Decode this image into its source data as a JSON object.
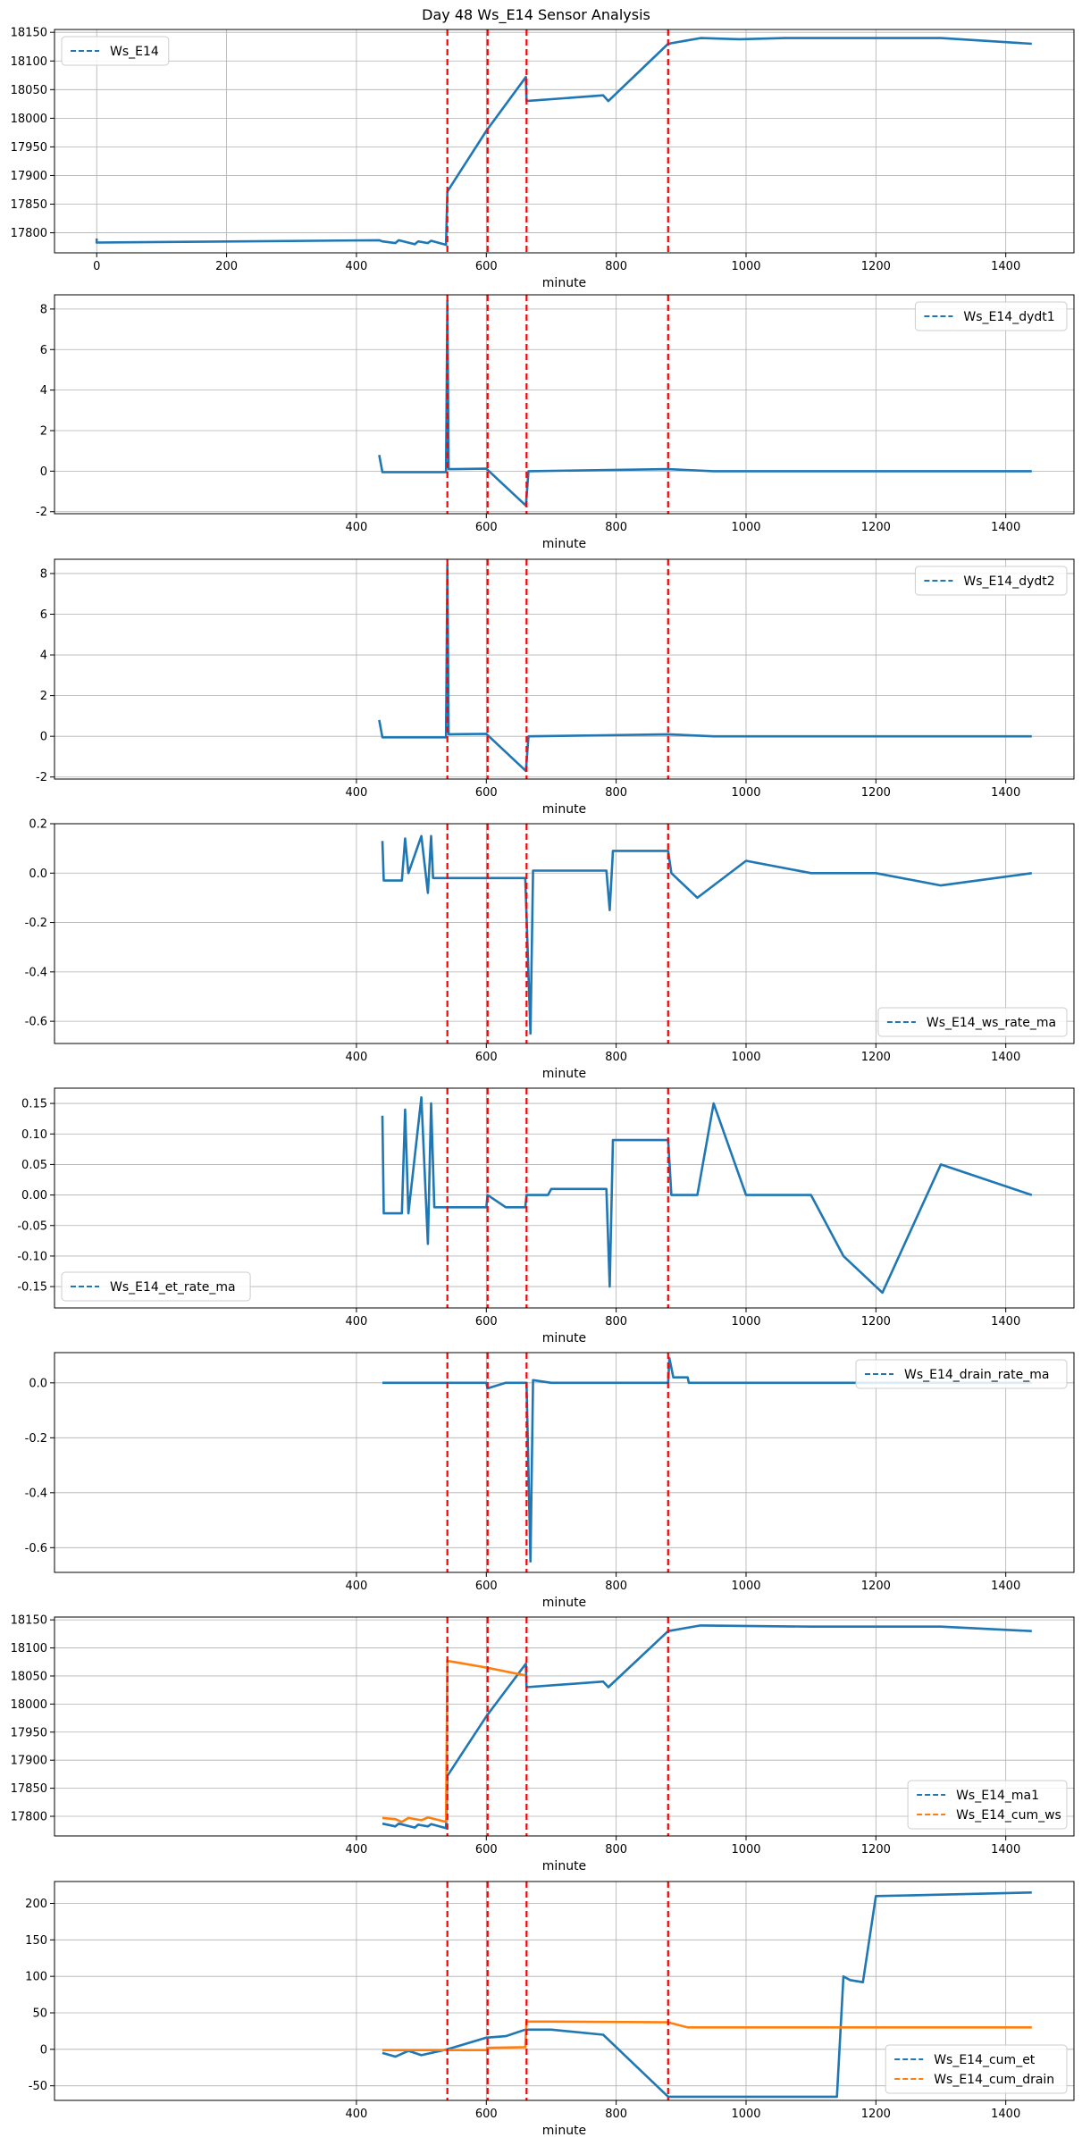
{
  "title": "Day 48 Ws_E14 Sensor Analysis",
  "colors": {
    "blue": "#1f77b4",
    "orange": "#ff7f0e",
    "vline": "#ff0000",
    "grid": "#b0b0b0"
  },
  "chart_data": [
    {
      "type": "line",
      "xlabel": "minute",
      "xlim": [
        -65,
        1505
      ],
      "ylim": [
        17765,
        18155
      ],
      "xticks": [
        0,
        200,
        400,
        600,
        800,
        1000,
        1200,
        1400
      ],
      "yticks": [
        17800,
        17850,
        17900,
        17950,
        18000,
        18050,
        18100,
        18150
      ],
      "legend": "top-left",
      "vlines": [
        540,
        602,
        662,
        880
      ],
      "series": [
        {
          "name": "Ws_E14",
          "color": "blue",
          "points": [
            [
              0,
              17790
            ],
            [
              0,
              17783
            ],
            [
              435,
              17787
            ],
            [
              440,
              17785
            ],
            [
              460,
              17782
            ],
            [
              465,
              17787
            ],
            [
              490,
              17780
            ],
            [
              495,
              17785
            ],
            [
              510,
              17782
            ],
            [
              515,
              17786
            ],
            [
              538,
              17779
            ],
            [
              540,
              17872
            ],
            [
              600,
              17978
            ],
            [
              661,
              18072
            ],
            [
              662,
              18030
            ],
            [
              780,
              18040
            ],
            [
              788,
              18030
            ],
            [
              880,
              18130
            ],
            [
              930,
              18140
            ],
            [
              990,
              18138
            ],
            [
              1060,
              18140
            ],
            [
              1140,
              18140
            ],
            [
              1200,
              18140
            ],
            [
              1300,
              18140
            ],
            [
              1440,
              18130
            ]
          ]
        }
      ]
    },
    {
      "type": "line",
      "xlabel": "minute",
      "xlim": [
        -65,
        1505
      ],
      "ylim": [
        -2.1,
        8.7
      ],
      "xticks": [
        400,
        600,
        800,
        1000,
        1200,
        1400
      ],
      "yticks": [
        -2,
        0,
        2,
        4,
        6,
        8
      ],
      "legend": "top-right",
      "vlines": [
        540,
        602,
        662,
        880
      ],
      "series": [
        {
          "name": "Ws_E14_dydt1",
          "color": "blue",
          "points": [
            [
              435,
              0.8
            ],
            [
              440,
              -0.05
            ],
            [
              500,
              -0.05
            ],
            [
              538,
              -0.05
            ],
            [
              540,
              8.4
            ],
            [
              542,
              0.1
            ],
            [
              600,
              0.12
            ],
            [
              661,
              -1.7
            ],
            [
              665,
              0
            ],
            [
              780,
              0.05
            ],
            [
              880,
              0.1
            ],
            [
              950,
              0
            ],
            [
              1050,
              0
            ],
            [
              1150,
              0
            ],
            [
              1250,
              0
            ],
            [
              1350,
              0
            ],
            [
              1440,
              0
            ]
          ]
        }
      ]
    },
    {
      "type": "line",
      "xlabel": "minute",
      "xlim": [
        -65,
        1505
      ],
      "ylim": [
        -2.1,
        8.7
      ],
      "xticks": [
        400,
        600,
        800,
        1000,
        1200,
        1400
      ],
      "yticks": [
        -2,
        0,
        2,
        4,
        6,
        8
      ],
      "legend": "top-right",
      "vlines": [
        540,
        602,
        662,
        880
      ],
      "series": [
        {
          "name": "Ws_E14_dydt2",
          "color": "blue",
          "points": [
            [
              435,
              0.8
            ],
            [
              440,
              -0.05
            ],
            [
              500,
              -0.05
            ],
            [
              538,
              -0.05
            ],
            [
              540,
              8.4
            ],
            [
              542,
              0.1
            ],
            [
              600,
              0.12
            ],
            [
              661,
              -1.7
            ],
            [
              665,
              0
            ],
            [
              780,
              0.05
            ],
            [
              880,
              0.1
            ],
            [
              950,
              0
            ],
            [
              1050,
              0
            ],
            [
              1150,
              0
            ],
            [
              1250,
              0
            ],
            [
              1350,
              0
            ],
            [
              1440,
              0
            ]
          ]
        }
      ]
    },
    {
      "type": "line",
      "xlabel": "minute",
      "xlim": [
        -65,
        1505
      ],
      "ylim": [
        -0.69,
        0.2
      ],
      "xticks": [
        400,
        600,
        800,
        1000,
        1200,
        1400
      ],
      "yticks": [
        -0.6,
        -0.4,
        -0.2,
        0.0,
        0.2
      ],
      "legend": "bottom-right",
      "vlines": [
        540,
        602,
        662,
        880
      ],
      "series": [
        {
          "name": "Ws_E14_ws_rate_ma",
          "color": "blue",
          "points": [
            [
              440,
              0.13
            ],
            [
              442,
              -0.03
            ],
            [
              470,
              -0.03
            ],
            [
              475,
              0.14
            ],
            [
              480,
              0.0
            ],
            [
              500,
              0.15
            ],
            [
              510,
              -0.08
            ],
            [
              515,
              0.15
            ],
            [
              518,
              -0.02
            ],
            [
              600,
              -0.02
            ],
            [
              602,
              -0.02
            ],
            [
              660,
              -0.02
            ],
            [
              668,
              -0.65
            ],
            [
              672,
              0.01
            ],
            [
              785,
              0.01
            ],
            [
              790,
              -0.15
            ],
            [
              795,
              0.09
            ],
            [
              880,
              0.09
            ],
            [
              885,
              0.0
            ],
            [
              925,
              -0.1
            ],
            [
              1000,
              0.05
            ],
            [
              1100,
              0.0
            ],
            [
              1200,
              0.0
            ],
            [
              1300,
              -0.05
            ],
            [
              1440,
              0.0
            ]
          ]
        }
      ]
    },
    {
      "type": "line",
      "xlabel": "minute",
      "xlim": [
        -65,
        1505
      ],
      "ylim": [
        -0.185,
        0.175
      ],
      "xticks": [
        400,
        600,
        800,
        1000,
        1200,
        1400
      ],
      "yticks": [
        -0.15,
        -0.1,
        -0.05,
        0.0,
        0.05,
        0.1,
        0.15
      ],
      "legend": "bottom-left",
      "vlines": [
        540,
        602,
        662,
        880
      ],
      "series": [
        {
          "name": "Ws_E14_et_rate_ma",
          "color": "blue",
          "points": [
            [
              440,
              0.13
            ],
            [
              442,
              -0.03
            ],
            [
              470,
              -0.03
            ],
            [
              475,
              0.14
            ],
            [
              480,
              -0.03
            ],
            [
              500,
              0.16
            ],
            [
              510,
              -0.08
            ],
            [
              515,
              0.15
            ],
            [
              520,
              -0.02
            ],
            [
              600,
              -0.02
            ],
            [
              602,
              0.0
            ],
            [
              630,
              -0.02
            ],
            [
              660,
              -0.02
            ],
            [
              662,
              0.0
            ],
            [
              695,
              0.0
            ],
            [
              700,
              0.01
            ],
            [
              785,
              0.01
            ],
            [
              790,
              -0.15
            ],
            [
              795,
              0.09
            ],
            [
              880,
              0.09
            ],
            [
              885,
              0.0
            ],
            [
              925,
              0.0
            ],
            [
              950,
              0.15
            ],
            [
              1000,
              0.0
            ],
            [
              1100,
              0.0
            ],
            [
              1150,
              -0.1
            ],
            [
              1210,
              -0.16
            ],
            [
              1300,
              0.05
            ],
            [
              1440,
              0.0
            ]
          ]
        }
      ]
    },
    {
      "type": "line",
      "xlabel": "minute",
      "xlim": [
        -65,
        1505
      ],
      "ylim": [
        -0.69,
        0.11
      ],
      "xticks": [
        400,
        600,
        800,
        1000,
        1200,
        1400
      ],
      "yticks": [
        -0.6,
        -0.4,
        -0.2,
        0.0
      ],
      "legend": "top-right",
      "vlines": [
        540,
        602,
        662,
        880
      ],
      "series": [
        {
          "name": "Ws_E14_drain_rate_ma",
          "color": "blue",
          "points": [
            [
              440,
              0
            ],
            [
              600,
              0
            ],
            [
              602,
              -0.02
            ],
            [
              630,
              0.0
            ],
            [
              662,
              0.0
            ],
            [
              668,
              -0.65
            ],
            [
              672,
              0.01
            ],
            [
              700,
              0.0
            ],
            [
              880,
              0.0
            ],
            [
              882,
              0.09
            ],
            [
              888,
              0.02
            ],
            [
              910,
              0.02
            ],
            [
              912,
              0.0
            ],
            [
              1440,
              0.0
            ]
          ]
        }
      ]
    },
    {
      "type": "line",
      "xlabel": "minute",
      "xlim": [
        -65,
        1505
      ],
      "ylim": [
        17765,
        18155
      ],
      "xticks": [
        400,
        600,
        800,
        1000,
        1200,
        1400
      ],
      "yticks": [
        17800,
        17850,
        17900,
        17950,
        18000,
        18050,
        18100,
        18150
      ],
      "legend": "bottom-right",
      "vlines": [
        540,
        602,
        662,
        880
      ],
      "series": [
        {
          "name": "Ws_E14_ma1",
          "color": "blue",
          "points": [
            [
              440,
              17787
            ],
            [
              460,
              17782
            ],
            [
              465,
              17787
            ],
            [
              490,
              17780
            ],
            [
              495,
              17785
            ],
            [
              510,
              17782
            ],
            [
              515,
              17786
            ],
            [
              538,
              17779
            ],
            [
              540,
              17872
            ],
            [
              600,
              17978
            ],
            [
              661,
              18072
            ],
            [
              662,
              18030
            ],
            [
              780,
              18040
            ],
            [
              788,
              18030
            ],
            [
              880,
              18130
            ],
            [
              930,
              18140
            ],
            [
              1100,
              18138
            ],
            [
              1300,
              18138
            ],
            [
              1440,
              18130
            ]
          ]
        },
        {
          "name": "Ws_E14_cum_ws",
          "color": "orange",
          "points": [
            [
              440,
              17797
            ],
            [
              460,
              17795
            ],
            [
              470,
              17790
            ],
            [
              480,
              17797
            ],
            [
              500,
              17793
            ],
            [
              510,
              17798
            ],
            [
              538,
              17790
            ],
            [
              540,
              18077
            ],
            [
              600,
              18065
            ],
            [
              660,
              18051
            ]
          ]
        }
      ]
    },
    {
      "type": "line",
      "xlabel": "minute",
      "xlim": [
        -65,
        1505
      ],
      "ylim": [
        -70,
        230
      ],
      "xticks": [
        400,
        600,
        800,
        1000,
        1200,
        1400
      ],
      "yticks": [
        -50,
        0,
        50,
        100,
        150,
        200
      ],
      "legend": "bottom-right",
      "vlines": [
        540,
        602,
        662,
        880
      ],
      "series": [
        {
          "name": "Ws_E14_cum_et",
          "color": "blue",
          "points": [
            [
              440,
              -5
            ],
            [
              460,
              -10
            ],
            [
              480,
              -2
            ],
            [
              500,
              -8
            ],
            [
              540,
              0
            ],
            [
              600,
              16
            ],
            [
              630,
              18
            ],
            [
              660,
              27
            ],
            [
              700,
              27
            ],
            [
              780,
              20
            ],
            [
              880,
              -65
            ],
            [
              920,
              -65
            ],
            [
              1000,
              -65
            ],
            [
              1130,
              -65
            ],
            [
              1140,
              -65
            ],
            [
              1150,
              100
            ],
            [
              1160,
              95
            ],
            [
              1180,
              92
            ],
            [
              1200,
              210
            ],
            [
              1300,
              212
            ],
            [
              1440,
              215
            ]
          ]
        },
        {
          "name": "Ws_E14_cum_drain",
          "color": "orange",
          "points": [
            [
              440,
              -1
            ],
            [
              540,
              -1
            ],
            [
              600,
              -1
            ],
            [
              602,
              2
            ],
            [
              660,
              3
            ],
            [
              662,
              38
            ],
            [
              700,
              38
            ],
            [
              880,
              37
            ],
            [
              910,
              30
            ],
            [
              1140,
              30
            ],
            [
              1200,
              30
            ],
            [
              1440,
              30
            ]
          ]
        }
      ]
    }
  ]
}
